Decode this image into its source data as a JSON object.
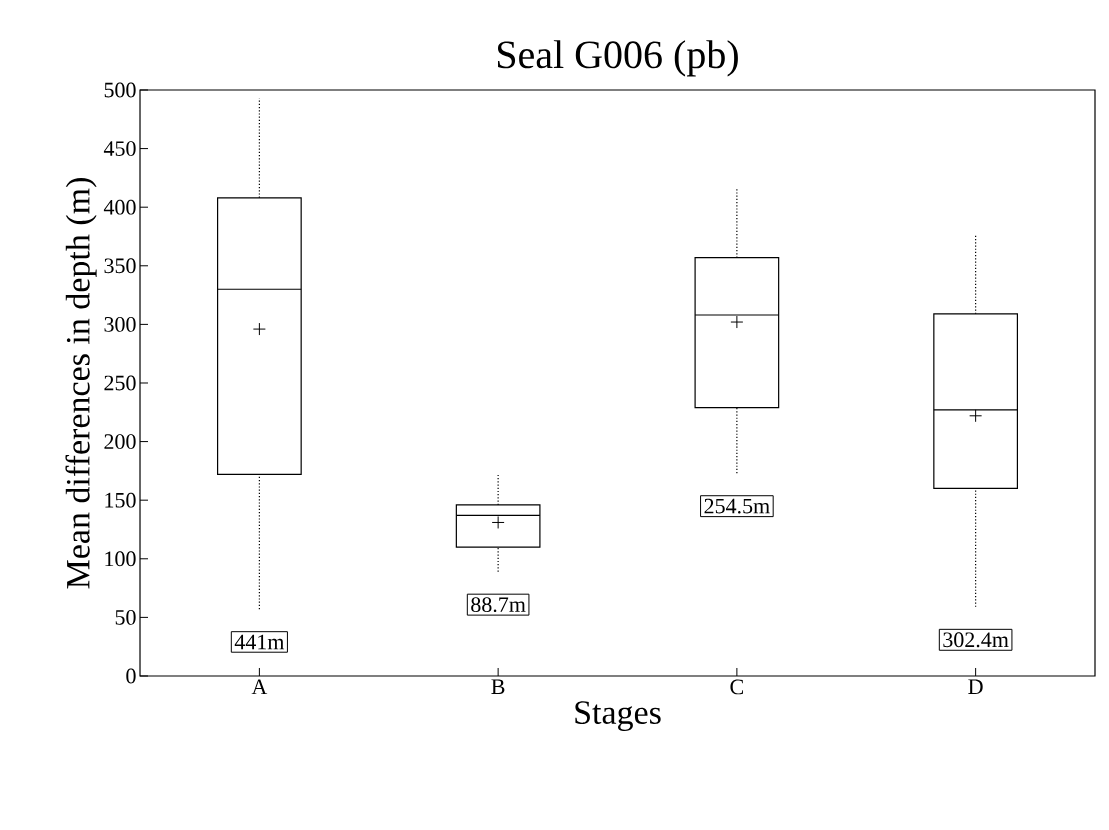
{
  "chart_data": {
    "type": "box",
    "title": "Seal G006 (pb)",
    "xlabel": "Stages",
    "ylabel": "Mean differences in depth (m)",
    "categories": [
      "A",
      "B",
      "C",
      "D"
    ],
    "boxes": [
      {
        "low": 57,
        "q1": 172,
        "median": 330,
        "q3": 408,
        "high": 493,
        "mean": 296
      },
      {
        "low": 89,
        "q1": 110,
        "median": 137,
        "q3": 146,
        "high": 172,
        "mean": 131
      },
      {
        "low": 173,
        "q1": 229,
        "median": 308,
        "q3": 357,
        "high": 417,
        "mean": 302
      },
      {
        "low": 59,
        "q1": 160,
        "median": 227,
        "q3": 309,
        "high": 377,
        "mean": 222
      }
    ],
    "color": "#000000",
    "ylim": [
      0,
      500
    ],
    "yticks": [
      0,
      50,
      100,
      150,
      200,
      250,
      300,
      350,
      400,
      450,
      500
    ],
    "grid": false,
    "line_style": "dotted",
    "annotations": [
      "441m",
      "88.7m",
      "254.5m",
      "302.4m"
    ]
  }
}
